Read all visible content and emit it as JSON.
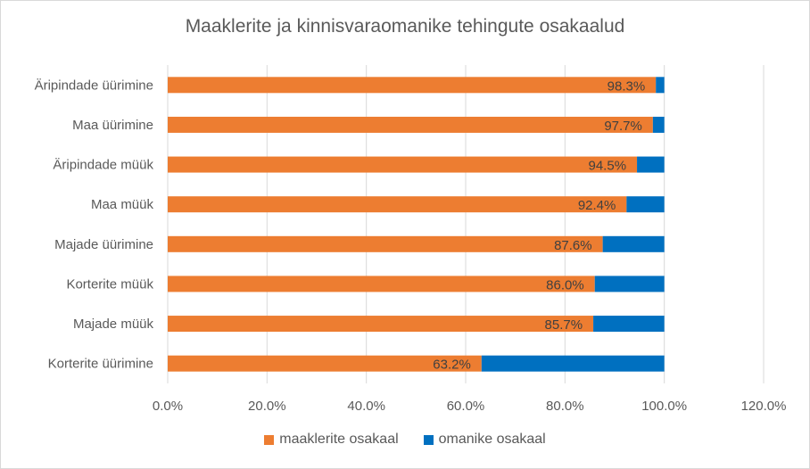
{
  "chart_data": {
    "type": "bar",
    "orientation": "horizontal",
    "stacked": "percent",
    "title": "Maaklerite ja kinnisvaraomanike tehingute osakaalud",
    "categories": [
      "Äripindade üürimine",
      "Maa üürimine",
      "Äripindade müük",
      "Maa müük",
      "Majade üürimine",
      "Korterite müük",
      "Majade müük",
      "Korterite üürimine"
    ],
    "series": [
      {
        "name": "maaklerite osakaal",
        "color": "#ed7d31",
        "values": [
          0.983,
          0.977,
          0.945,
          0.924,
          0.876,
          0.86,
          0.857,
          0.632
        ]
      },
      {
        "name": "omanike osakaal",
        "color": "#0070c0",
        "values": [
          0.017,
          0.023,
          0.055,
          0.076,
          0.124,
          0.14,
          0.143,
          0.368
        ]
      }
    ],
    "data_labels": [
      "98.3%",
      "97.7%",
      "94.5%",
      "92.4%",
      "87.6%",
      "86.0%",
      "85.7%",
      "63.2%"
    ],
    "xlim": [
      0,
      1.2
    ],
    "x_ticks": [
      0,
      0.2,
      0.4,
      0.6,
      0.8,
      1.0,
      1.2
    ],
    "x_tick_labels": [
      "0.0%",
      "20.0%",
      "40.0%",
      "60.0%",
      "80.0%",
      "100.0%",
      "120.0%"
    ],
    "grid": true,
    "legend_position": "bottom"
  }
}
